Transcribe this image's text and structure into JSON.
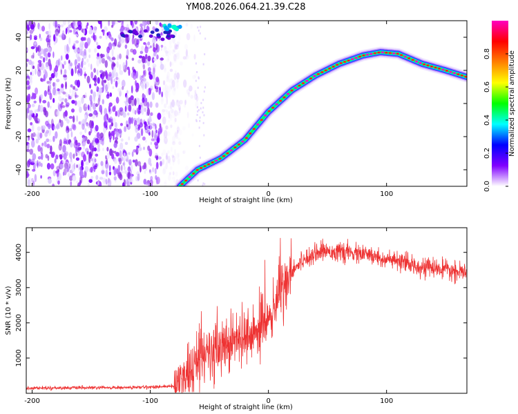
{
  "chart_data": [
    {
      "type": "heatmap",
      "title": "YM08.2026.064.21.39.C28",
      "xlabel": "Height of straight line (km)",
      "ylabel": "Frequency (Hz)",
      "xlim": [
        -205,
        168
      ],
      "ylim": [
        -50,
        50
      ],
      "xticks": [
        -200,
        -100,
        0,
        100
      ],
      "yticks": [
        -40,
        -20,
        0,
        20,
        40
      ],
      "ridge": {
        "x": [
          -75,
          -60,
          -40,
          -20,
          0,
          20,
          40,
          60,
          80,
          95,
          110,
          130,
          150,
          168
        ],
        "y": [
          -50,
          -40,
          -33,
          -22,
          -5,
          8,
          17,
          24,
          29,
          31,
          30,
          24,
          20,
          16
        ]
      },
      "noise_region_x": [
        -205,
        -80
      ],
      "colorbar": {
        "label": "Normalized spectral amplitude",
        "range": [
          0,
          1
        ],
        "ticks": [
          "0.0",
          "0.2",
          "0.4",
          "0.6",
          "0.8"
        ],
        "colors": [
          "#ffffff",
          "#8000ff",
          "#0000ff",
          "#00ffff",
          "#00ff00",
          "#ffff00",
          "#ff8000",
          "#ff0000",
          "#ff00c0"
        ]
      }
    },
    {
      "type": "line",
      "title": "",
      "xlabel": "Height of straight line (km)",
      "ylabel": "SNR (10 * v/v)",
      "xlim": [
        -205,
        168
      ],
      "ylim": [
        0,
        4700
      ],
      "xticks": [
        -200,
        -100,
        0,
        100
      ],
      "yticks": [
        1000,
        2000,
        3000,
        4000
      ],
      "color": "#ee3333",
      "series": [
        {
          "name": "SNR",
          "envelope_x": [
            -205,
            -120,
            -80,
            -70,
            -60,
            -50,
            -40,
            -30,
            -20,
            -10,
            0,
            10,
            20,
            30,
            40,
            50,
            60,
            80,
            100,
            120,
            140,
            168
          ],
          "envelope_y": [
            150,
            160,
            200,
            400,
            900,
            1200,
            1400,
            1500,
            1700,
            1800,
            2100,
            2900,
            3500,
            3800,
            4000,
            4050,
            4000,
            3950,
            3800,
            3650,
            3550,
            3400
          ]
        }
      ]
    }
  ]
}
